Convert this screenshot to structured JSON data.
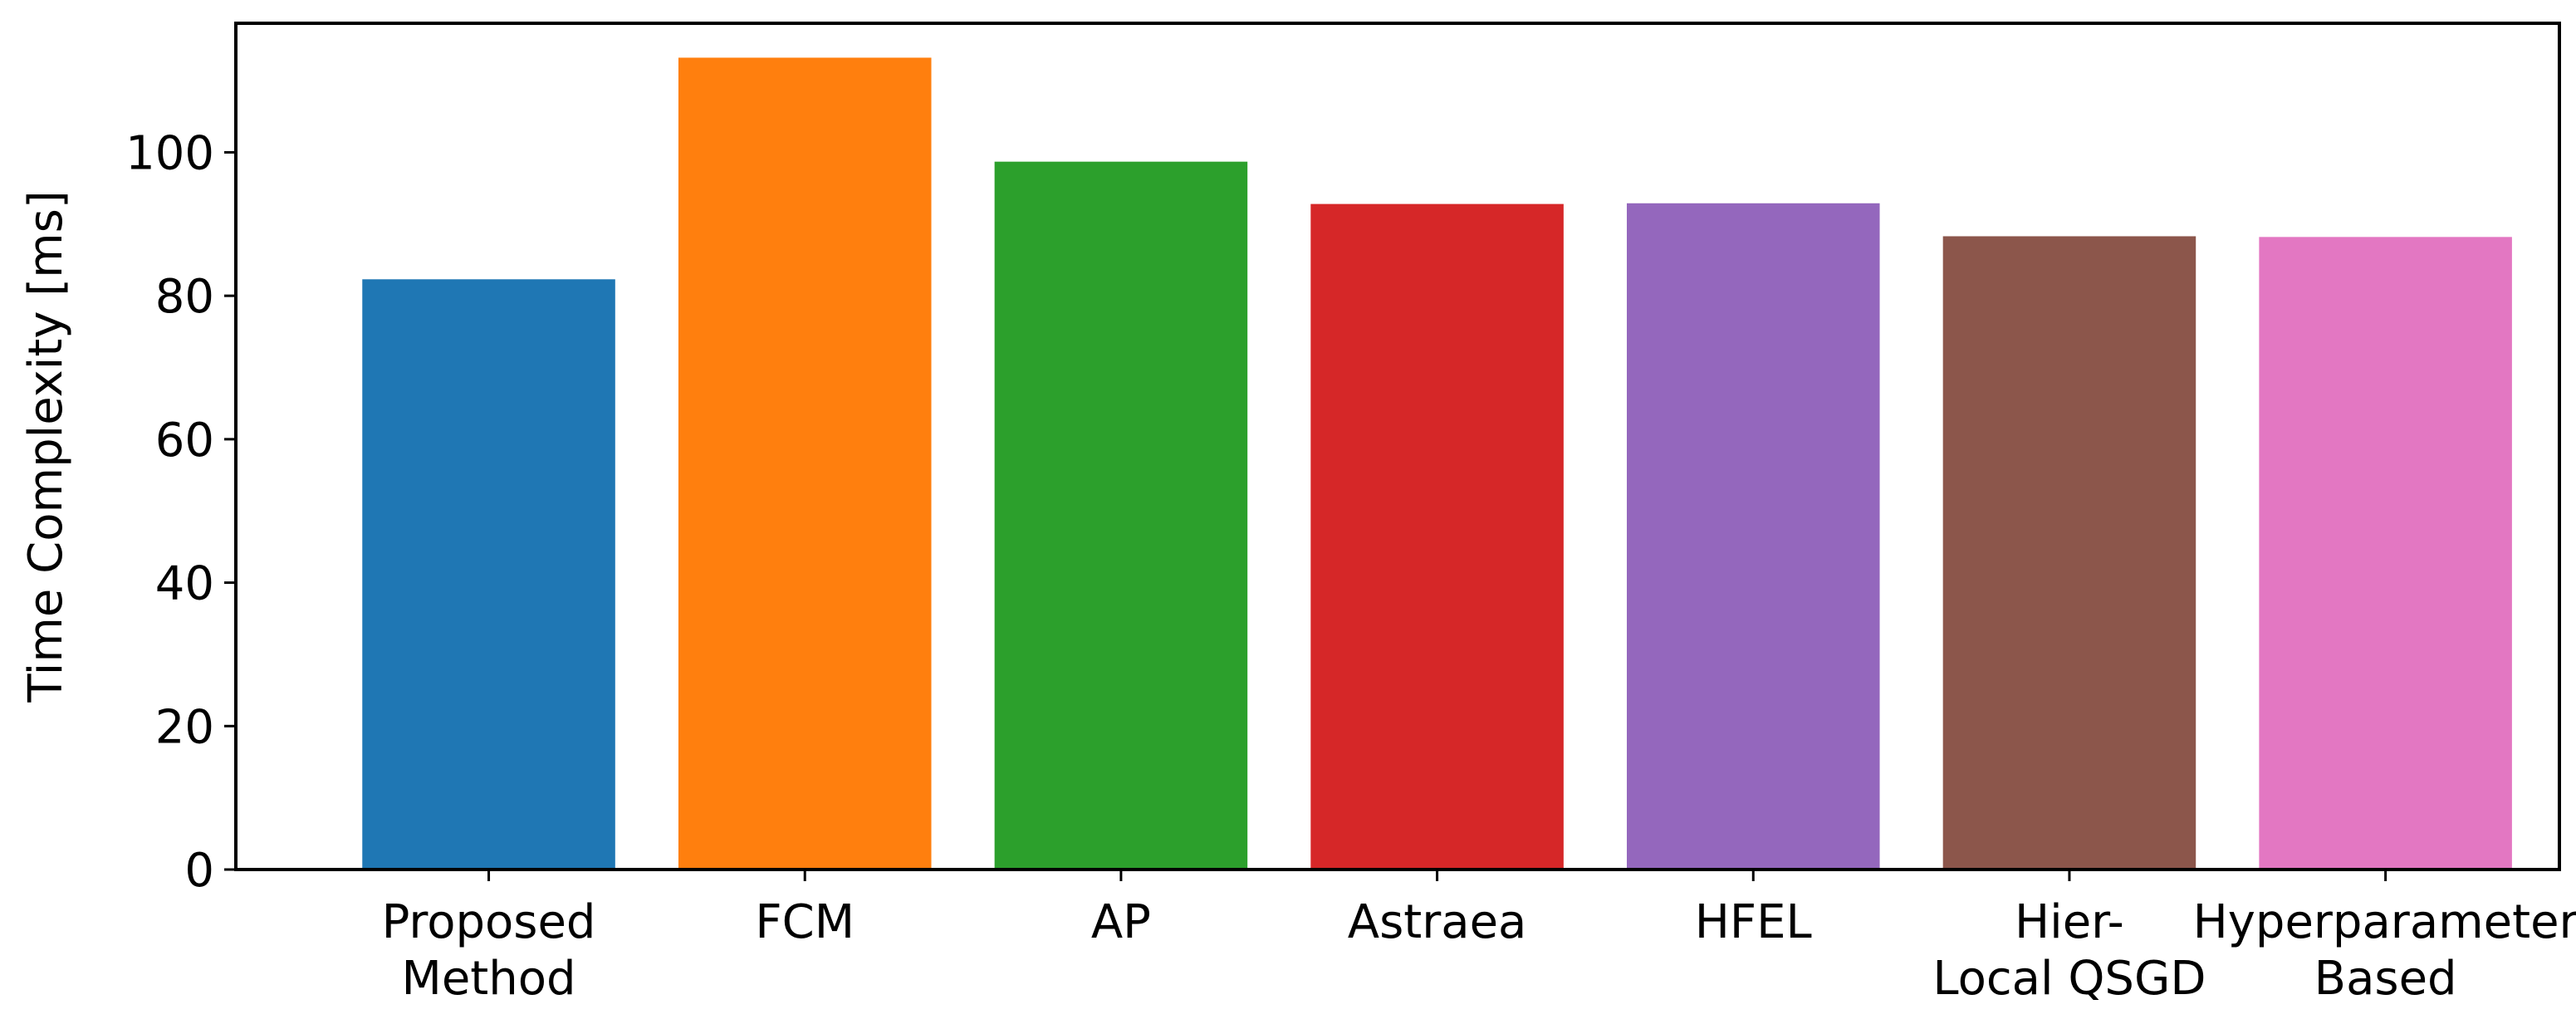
{
  "chart_data": {
    "type": "bar",
    "title": "",
    "xlabel": "",
    "ylabel": "Time Complexity [ms]",
    "ylim": [
      0,
      118
    ],
    "yticks": [
      0,
      20,
      40,
      60,
      80,
      100
    ],
    "grid": false,
    "legend": "none",
    "categories": [
      [
        "Proposed",
        "Method"
      ],
      [
        "FCM"
      ],
      [
        "AP"
      ],
      [
        "Astraea"
      ],
      [
        "HFEL"
      ],
      [
        "Hier-",
        "Local QSGD"
      ],
      [
        "Hyperparameter",
        "Based"
      ]
    ],
    "values": [
      82.3,
      113.2,
      98.7,
      92.8,
      92.9,
      88.3,
      88.2
    ],
    "colors": [
      "#1f77b4",
      "#ff7f0e",
      "#2ca02c",
      "#d62728",
      "#9467bd",
      "#8c564b",
      "#e377c2"
    ]
  }
}
